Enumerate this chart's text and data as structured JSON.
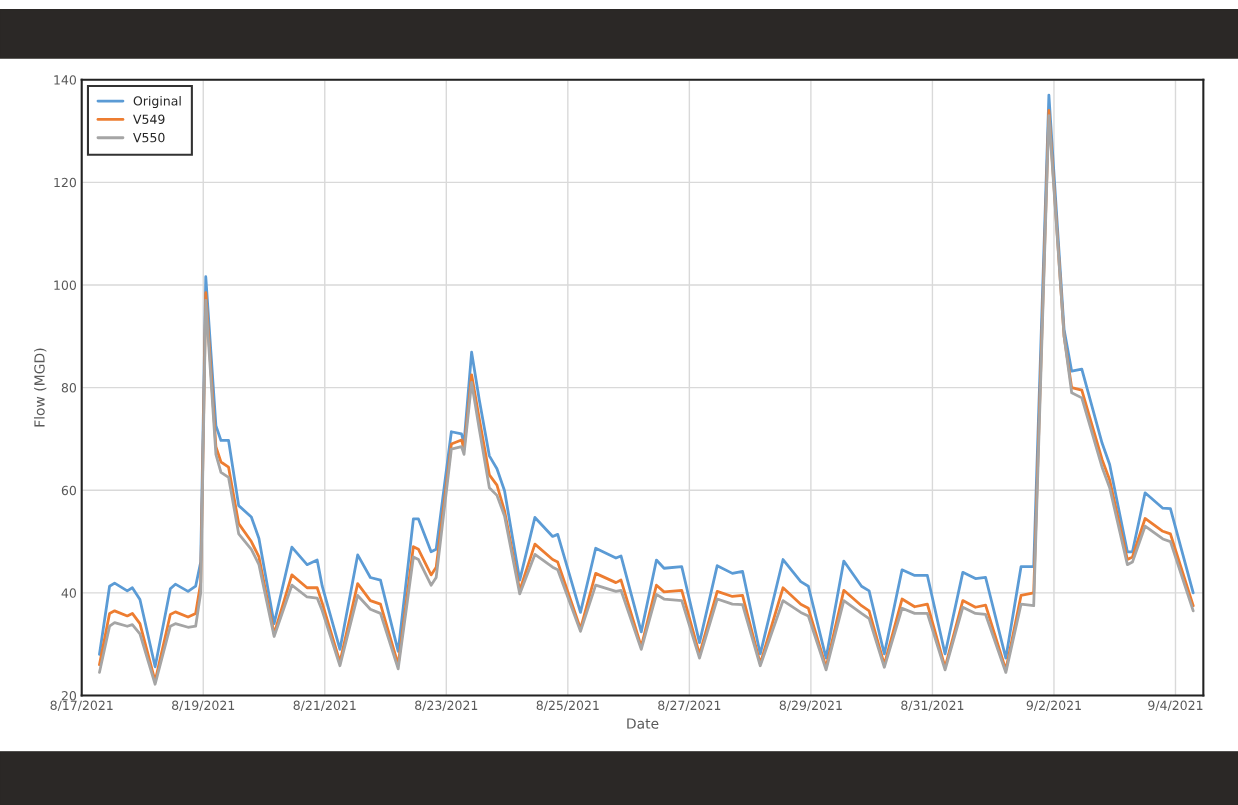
{
  "chart_data": {
    "type": "line",
    "xlabel": "Date",
    "ylabel": "Flow (MGD)",
    "x": [
      "2021-08-17T07:00",
      "2021-08-17T11:00",
      "2021-08-17T13:00",
      "2021-08-17T18:00",
      "2021-08-17T20:00",
      "2021-08-17T23:00",
      "2021-08-18T05:00",
      "2021-08-18T11:00",
      "2021-08-18T13:00",
      "2021-08-18T18:00",
      "2021-08-18T21:00",
      "2021-08-18T23:00",
      "2021-08-19T01:00",
      "2021-08-19T05:00",
      "2021-08-19T07:00",
      "2021-08-19T10:00",
      "2021-08-19T14:00",
      "2021-08-19T19:00",
      "2021-08-19T22:00",
      "2021-08-20T04:00",
      "2021-08-20T11:00",
      "2021-08-20T17:00",
      "2021-08-20T21:00",
      "2021-08-20T23:00",
      "2021-08-21T06:00",
      "2021-08-21T13:00",
      "2021-08-21T18:00",
      "2021-08-21T22:00",
      "2021-08-22T05:00",
      "2021-08-22T11:00",
      "2021-08-22T13:00",
      "2021-08-22T18:00",
      "2021-08-22T20:00",
      "2021-08-23T02:00",
      "2021-08-23T06:00",
      "2021-08-23T07:00",
      "2021-08-23T10:00",
      "2021-08-23T13:00",
      "2021-08-23T17:00",
      "2021-08-23T20:00",
      "2021-08-23T23:00",
      "2021-08-24T05:00",
      "2021-08-24T11:00",
      "2021-08-24T18:00",
      "2021-08-24T20:00",
      "2021-08-25T05:00",
      "2021-08-25T11:00",
      "2021-08-25T19:00",
      "2021-08-25T21:00",
      "2021-08-26T05:00",
      "2021-08-26T11:00",
      "2021-08-26T14:00",
      "2021-08-26T21:00",
      "2021-08-27T04:00",
      "2021-08-27T11:00",
      "2021-08-27T17:00",
      "2021-08-27T21:00",
      "2021-08-28T04:00",
      "2021-08-28T13:00",
      "2021-08-28T20:00",
      "2021-08-28T23:00",
      "2021-08-29T06:00",
      "2021-08-29T13:00",
      "2021-08-29T20:00",
      "2021-08-29T23:00",
      "2021-08-30T05:00",
      "2021-08-30T12:00",
      "2021-08-30T17:00",
      "2021-08-30T22:00",
      "2021-08-31T05:00",
      "2021-08-31T12:00",
      "2021-08-31T17:00",
      "2021-08-31T21:00",
      "2021-09-01T05:00",
      "2021-09-01T11:00",
      "2021-09-01T16:00",
      "2021-09-01T22:00",
      "2021-09-02T04:00",
      "2021-09-02T07:00",
      "2021-09-02T11:00",
      "2021-09-02T19:00",
      "2021-09-02T22:00",
      "2021-09-03T05:00",
      "2021-09-03T07:00",
      "2021-09-03T12:00",
      "2021-09-03T19:00",
      "2021-09-03T22:00",
      "2021-09-04T07:00"
    ],
    "series": [
      {
        "name": "Original",
        "color": "#5b9bd5",
        "values": [
          28,
          41.3,
          41.9,
          40.4,
          41,
          38.7,
          25.6,
          40.8,
          41.7,
          40.3,
          41.3,
          46,
          101.6,
          72.6,
          69.7,
          69.7,
          57,
          54.8,
          50.6,
          34,
          48.9,
          45.5,
          46.4,
          41.3,
          29,
          47.4,
          43,
          42.5,
          28.6,
          54.4,
          54.4,
          48,
          48.5,
          71.4,
          71,
          69.2,
          86.9,
          77.7,
          66.7,
          64.2,
          59.9,
          42.5,
          54.7,
          51,
          51.4,
          36.2,
          48.7,
          46.8,
          47.2,
          32.4,
          46.4,
          44.8,
          45.1,
          30.3,
          45.3,
          43.8,
          44.2,
          28.1,
          46.5,
          42.2,
          41.3,
          27.3,
          46.2,
          41.3,
          40.4,
          28.1,
          44.5,
          43.4,
          43.4,
          28.1,
          44,
          42.8,
          43,
          27.3,
          45.1,
          45.1,
          137,
          91.3,
          83.2,
          83.6,
          69.2,
          65,
          48,
          48,
          59.5,
          56.5,
          56.4,
          40
        ]
      },
      {
        "name": "V549",
        "color": "#ed7d31",
        "values": [
          26,
          36,
          36.5,
          35.5,
          36,
          34,
          22.8,
          35.8,
          36.3,
          35.3,
          36,
          42,
          98.5,
          68.5,
          65.5,
          64.5,
          53.5,
          50,
          47,
          32,
          43.5,
          41,
          41,
          38,
          26.5,
          41.8,
          38.5,
          37.8,
          26,
          49,
          48.5,
          43.5,
          45,
          69,
          69.8,
          68,
          82.5,
          74,
          63,
          61,
          56,
          40.5,
          49.5,
          46.5,
          46,
          33,
          43.8,
          42,
          42.5,
          29.5,
          41.5,
          40.2,
          40.5,
          28,
          40.3,
          39.3,
          39.5,
          26.2,
          41,
          37.8,
          37,
          25.5,
          40.5,
          37.5,
          36.5,
          26,
          38.8,
          37.3,
          37.8,
          25.5,
          38.5,
          37.2,
          37.6,
          25,
          39.5,
          40,
          134,
          90,
          80,
          79.5,
          66,
          62,
          46.5,
          47,
          54.5,
          52,
          51.5,
          37.5
        ]
      },
      {
        "name": "V550",
        "color": "#a5a5a5",
        "values": [
          24.5,
          33.5,
          34.2,
          33.5,
          33.8,
          32,
          22.2,
          33.5,
          34,
          33.3,
          33.5,
          40,
          97,
          67,
          63.5,
          62.5,
          51.5,
          48.5,
          45.5,
          31.5,
          41.5,
          39.2,
          39,
          36.5,
          25.8,
          39.5,
          36.8,
          36,
          25.2,
          47,
          46.5,
          41.5,
          43,
          68,
          68.5,
          67,
          81,
          72,
          60.5,
          59,
          55,
          39.8,
          47.5,
          45,
          44.5,
          32.5,
          41.5,
          40.3,
          40.5,
          29,
          39.7,
          38.8,
          38.5,
          27.3,
          38.8,
          37.8,
          37.7,
          25.8,
          38.5,
          36.2,
          35.5,
          25,
          38.5,
          36,
          35,
          25.5,
          37,
          36,
          36,
          25,
          37.2,
          36,
          35.8,
          24.5,
          37.8,
          37.5,
          133,
          90,
          79,
          78,
          64.5,
          60.5,
          45.5,
          46,
          53,
          50.5,
          50,
          36.5
        ]
      }
    ],
    "xlim": [
      "2021-08-17",
      "2021-09-04T11:00"
    ],
    "xticks": [
      {
        "value": "2021-08-17",
        "label": "8/17/2021"
      },
      {
        "value": "2021-08-19",
        "label": "8/19/2021"
      },
      {
        "value": "2021-08-21",
        "label": "8/21/2021"
      },
      {
        "value": "2021-08-23",
        "label": "8/23/2021"
      },
      {
        "value": "2021-08-25",
        "label": "8/25/2021"
      },
      {
        "value": "2021-08-27",
        "label": "8/27/2021"
      },
      {
        "value": "2021-08-29",
        "label": "8/29/2021"
      },
      {
        "value": "2021-08-31",
        "label": "8/31/2021"
      },
      {
        "value": "2021-09-02",
        "label": "9/2/2021"
      },
      {
        "value": "2021-09-04",
        "label": "9/4/2021"
      }
    ],
    "ylim": [
      20,
      140
    ],
    "yticks": [
      20,
      40,
      60,
      80,
      100,
      120,
      140
    ],
    "grid": true,
    "legend": "top left",
    "marker": "none",
    "line_style": "solid"
  }
}
